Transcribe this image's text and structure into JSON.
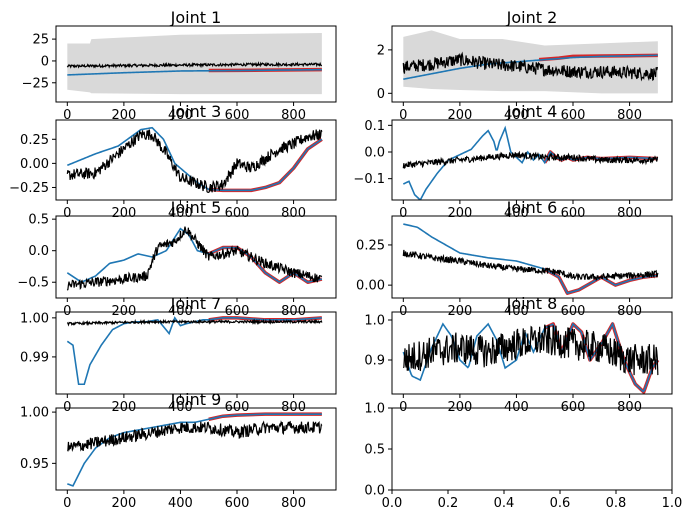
{
  "colors": {
    "prediction": "#1f77b4",
    "observed": "#000000",
    "band": "#d9d9d9",
    "highlight": "#d62728"
  },
  "chart_data": [
    {
      "type": "line",
      "title": "Joint 1",
      "xlim": [
        -40,
        950
      ],
      "ylim": [
        -47,
        40
      ],
      "xticks": [
        0,
        200,
        400,
        600,
        800
      ],
      "yticks": [
        {
          "v": 25,
          "label": "25"
        },
        {
          "v": 0,
          "label": "0"
        },
        {
          "v": -25,
          "label": "−25"
        }
      ],
      "band": {
        "x": [
          0,
          80,
          85,
          400,
          900
        ],
        "lower": [
          -33,
          -36,
          -37,
          -38,
          -38
        ],
        "upper": [
          20,
          20,
          25,
          30,
          32
        ]
      },
      "prediction": {
        "x": [
          0,
          200,
          400,
          600,
          900
        ],
        "y": [
          -16,
          -13.5,
          -11.5,
          -11,
          -10
        ]
      },
      "highlight": {
        "x": [
          500,
          600,
          700,
          800,
          900
        ],
        "y": [
          -11,
          -10.8,
          -10.5,
          -10.2,
          -10
        ]
      },
      "observed": {
        "base_x": [
          0,
          150,
          300,
          500,
          700,
          900
        ],
        "base_y": [
          -6,
          -5.5,
          -5,
          -4.5,
          -4,
          -4
        ],
        "noise": 1.5
      }
    },
    {
      "type": "line",
      "title": "Joint 2",
      "xlim": [
        -40,
        950
      ],
      "ylim": [
        -0.4,
        3.1
      ],
      "xticks": [
        0,
        200,
        400,
        600,
        800
      ],
      "yticks": [
        {
          "v": 2,
          "label": "2"
        },
        {
          "v": 0,
          "label": "0"
        }
      ],
      "band": {
        "x": [
          0,
          100,
          200,
          350,
          500,
          700,
          900
        ],
        "lower": [
          0.3,
          0.2,
          0.15,
          0.1,
          0.1,
          0.0,
          0.0
        ],
        "upper": [
          2.6,
          2.9,
          2.5,
          2.5,
          2.2,
          2.3,
          2.4
        ]
      },
      "prediction": {
        "x": [
          0,
          100,
          200,
          300,
          400,
          500,
          600,
          700,
          900
        ],
        "y": [
          0.65,
          0.9,
          1.15,
          1.35,
          1.45,
          1.55,
          1.65,
          1.7,
          1.75
        ]
      },
      "highlight": {
        "x": [
          480,
          550,
          600,
          700,
          800,
          900
        ],
        "y": [
          1.55,
          1.62,
          1.7,
          1.72,
          1.73,
          1.75
        ]
      },
      "observed": {
        "base_x": [
          0,
          100,
          200,
          300,
          400,
          500,
          600,
          700,
          800,
          900
        ],
        "base_y": [
          1.2,
          1.35,
          1.55,
          1.35,
          1.25,
          1.1,
          1.0,
          1.0,
          0.95,
          0.9
        ],
        "noise": 0.3
      }
    },
    {
      "type": "line",
      "title": "Joint 3",
      "xlim": [
        -40,
        950
      ],
      "ylim": [
        -0.38,
        0.45
      ],
      "xticks": [
        0,
        200,
        400,
        600,
        800
      ],
      "yticks": [
        {
          "v": 0.25,
          "label": "0.25"
        },
        {
          "v": 0,
          "label": "0.00"
        },
        {
          "v": -0.25,
          "label": "−0.25"
        }
      ],
      "band": {
        "x": [
          0,
          900
        ],
        "lower": [
          0,
          0
        ],
        "upper": [
          0,
          0
        ]
      },
      "prediction": {
        "x": [
          0,
          100,
          180,
          260,
          300,
          340,
          380,
          420,
          460,
          500,
          550,
          650,
          700,
          750,
          800,
          850,
          900
        ],
        "y": [
          -0.02,
          0.1,
          0.18,
          0.35,
          0.37,
          0.25,
          0.0,
          -0.1,
          -0.2,
          -0.27,
          -0.28,
          -0.28,
          -0.25,
          -0.2,
          -0.05,
          0.15,
          0.25
        ]
      },
      "highlight": {
        "x": [
          500,
          550,
          650,
          700,
          750,
          800,
          850,
          900
        ],
        "y": [
          -0.27,
          -0.28,
          -0.28,
          -0.25,
          -0.2,
          -0.05,
          0.15,
          0.25
        ]
      },
      "observed": {
        "base_x": [
          0,
          100,
          200,
          260,
          300,
          350,
          400,
          450,
          500,
          550,
          600,
          650,
          700,
          750,
          800,
          850,
          900
        ],
        "base_y": [
          -0.12,
          -0.1,
          0.15,
          0.3,
          0.3,
          0.1,
          -0.15,
          -0.2,
          -0.25,
          -0.22,
          0.0,
          -0.05,
          0.05,
          0.15,
          0.2,
          0.28,
          0.3
        ],
        "noise": 0.06
      }
    },
    {
      "type": "line",
      "title": "Joint 4",
      "xlim": [
        -40,
        950
      ],
      "ylim": [
        -0.18,
        0.12
      ],
      "xticks": [
        0,
        200,
        400,
        600,
        800
      ],
      "yticks": [
        {
          "v": 0.1,
          "label": "0.1"
        },
        {
          "v": 0,
          "label": "0.0"
        },
        {
          "v": -0.1,
          "label": "−0.1"
        }
      ],
      "band": {
        "x": [
          0,
          900
        ],
        "lower": [
          0,
          0
        ],
        "upper": [
          0,
          0
        ]
      },
      "prediction": {
        "x": [
          0,
          20,
          40,
          60,
          80,
          120,
          160,
          200,
          240,
          280,
          300,
          320,
          330,
          340,
          360,
          380,
          400,
          420,
          440,
          460,
          480,
          500,
          520,
          540,
          560,
          580,
          600,
          650,
          700,
          800,
          900
        ],
        "y": [
          -0.12,
          -0.11,
          -0.16,
          -0.18,
          -0.14,
          -0.08,
          -0.03,
          -0.01,
          0.01,
          0.06,
          0.08,
          0.04,
          0.0,
          0.04,
          0.09,
          0.0,
          -0.02,
          -0.04,
          0.0,
          -0.03,
          -0.01,
          -0.04,
          0.0,
          -0.02,
          -0.03,
          -0.02,
          -0.03,
          -0.02,
          -0.025,
          -0.02,
          -0.025
        ]
      },
      "highlight": {
        "x": [
          500,
          520,
          540,
          560,
          580,
          600,
          650,
          700,
          800,
          900
        ],
        "y": [
          -0.04,
          0.0,
          -0.02,
          -0.03,
          -0.02,
          -0.03,
          -0.02,
          -0.025,
          -0.02,
          -0.025
        ]
      },
      "observed": {
        "base_x": [
          0,
          100,
          200,
          300,
          400,
          500,
          600,
          700,
          800,
          900
        ],
        "base_y": [
          -0.05,
          -0.04,
          -0.03,
          -0.02,
          -0.01,
          -0.02,
          -0.02,
          -0.03,
          -0.03,
          -0.03
        ],
        "noise": 0.012
      }
    },
    {
      "type": "line",
      "title": "Joint 5",
      "xlim": [
        -40,
        950
      ],
      "ylim": [
        -0.75,
        0.55
      ],
      "xticks": [
        0,
        200,
        400,
        600,
        800
      ],
      "yticks": [
        {
          "v": 0.5,
          "label": "0.5"
        },
        {
          "v": 0,
          "label": "0.0"
        },
        {
          "v": -0.5,
          "label": "−0.5"
        }
      ],
      "band": {
        "x": [
          0,
          900
        ],
        "lower": [
          0,
          0
        ],
        "upper": [
          0,
          0
        ]
      },
      "prediction": {
        "x": [
          0,
          50,
          100,
          150,
          200,
          250,
          300,
          350,
          400,
          430,
          460,
          500,
          550,
          600,
          650,
          700,
          750,
          800,
          850,
          900
        ],
        "y": [
          -0.35,
          -0.5,
          -0.4,
          -0.2,
          -0.15,
          -0.05,
          -0.1,
          0.0,
          0.35,
          0.25,
          0.0,
          -0.05,
          0.05,
          0.05,
          -0.1,
          -0.35,
          -0.5,
          -0.35,
          -0.5,
          -0.45
        ]
      },
      "highlight": {
        "x": [
          500,
          550,
          600,
          650,
          700,
          750,
          800,
          850,
          900
        ],
        "y": [
          -0.05,
          0.05,
          0.05,
          -0.1,
          -0.35,
          -0.5,
          -0.35,
          -0.5,
          -0.45
        ]
      },
      "observed": {
        "base_x": [
          0,
          100,
          200,
          280,
          320,
          380,
          420,
          500,
          600,
          700,
          800,
          900
        ],
        "base_y": [
          -0.55,
          -0.5,
          -0.45,
          -0.4,
          0.05,
          0.15,
          0.35,
          -0.1,
          0.0,
          -0.2,
          -0.35,
          -0.45
        ],
        "noise": 0.08
      }
    },
    {
      "type": "line",
      "title": "Joint 6",
      "xlim": [
        -40,
        950
      ],
      "ylim": [
        -0.08,
        0.43
      ],
      "xticks": [
        0,
        200,
        400,
        600,
        800
      ],
      "yticks": [
        {
          "v": 0.25,
          "label": "0.25"
        },
        {
          "v": 0,
          "label": "0.00"
        }
      ],
      "band": {
        "x": [
          0,
          900
        ],
        "lower": [
          0,
          0
        ],
        "upper": [
          0,
          0
        ]
      },
      "prediction": {
        "x": [
          0,
          50,
          100,
          150,
          200,
          300,
          400,
          500,
          550,
          580,
          620,
          700,
          750,
          800,
          850,
          900
        ],
        "y": [
          0.38,
          0.36,
          0.3,
          0.25,
          0.2,
          0.17,
          0.15,
          0.1,
          0.05,
          -0.05,
          -0.03,
          0.05,
          0.0,
          0.03,
          0.05,
          0.06
        ]
      },
      "highlight": {
        "x": [
          500,
          550,
          580,
          620,
          700,
          750,
          800,
          850,
          900
        ],
        "y": [
          0.1,
          0.05,
          -0.05,
          -0.03,
          0.05,
          0.0,
          0.03,
          0.05,
          0.06
        ]
      },
      "observed": {
        "base_x": [
          0,
          100,
          200,
          300,
          400,
          500,
          550,
          600,
          700,
          800,
          900
        ],
        "base_y": [
          0.2,
          0.17,
          0.15,
          0.12,
          0.1,
          0.09,
          0.08,
          0.05,
          0.05,
          0.06,
          0.07
        ],
        "noise": 0.02
      }
    },
    {
      "type": "line",
      "title": "Joint 7",
      "xlim": [
        -40,
        950
      ],
      "ylim": [
        0.9805,
        1.0015
      ],
      "xticks": [
        0,
        200,
        400,
        600,
        800
      ],
      "yticks": [
        {
          "v": 1.0,
          "label": "1.00"
        },
        {
          "v": 0.99,
          "label": "0.99"
        }
      ],
      "band": {
        "x": [
          0,
          900
        ],
        "lower": [
          0,
          0
        ],
        "upper": [
          0,
          0
        ]
      },
      "prediction": {
        "x": [
          0,
          20,
          40,
          60,
          80,
          120,
          160,
          200,
          240,
          280,
          320,
          360,
          380,
          400,
          420,
          450,
          480,
          500,
          550,
          600,
          700,
          800,
          900
        ],
        "y": [
          0.994,
          0.993,
          0.983,
          0.983,
          0.988,
          0.993,
          0.997,
          0.9985,
          0.999,
          0.999,
          0.9995,
          0.996,
          1.0,
          0.998,
          0.9985,
          0.999,
          0.9995,
          0.9995,
          1.0,
          1.0,
          0.9995,
          0.9995,
          1.0
        ]
      },
      "highlight": {
        "x": [
          500,
          550,
          600,
          700,
          800,
          900
        ],
        "y": [
          0.9995,
          1.0,
          1.0,
          0.9995,
          0.9995,
          1.0
        ]
      },
      "observed": {
        "base_x": [
          0,
          300,
          600,
          900
        ],
        "base_y": [
          0.9985,
          0.999,
          0.999,
          0.999
        ],
        "noise": 0.0003
      }
    },
    {
      "type": "line",
      "title": "Joint 8",
      "xlim": [
        -40,
        950
      ],
      "ylim": [
        0.815,
        1.02
      ],
      "xticks": [
        0,
        200,
        400,
        600,
        800
      ],
      "yticks": [
        {
          "v": 1.0,
          "label": "1.0"
        },
        {
          "v": 0.9,
          "label": "0.9"
        }
      ],
      "band": {
        "x": [
          0,
          900
        ],
        "lower": [
          0,
          0
        ],
        "upper": [
          0,
          0
        ]
      },
      "prediction": {
        "x": [
          0,
          30,
          60,
          100,
          140,
          170,
          200,
          230,
          260,
          300,
          330,
          360,
          400,
          430,
          460,
          500,
          530,
          560,
          600,
          630,
          660,
          700,
          740,
          780,
          820,
          850,
          880,
          900
        ],
        "y": [
          0.92,
          0.86,
          0.85,
          0.93,
          0.99,
          0.96,
          0.9,
          0.88,
          0.96,
          0.99,
          0.95,
          0.88,
          0.9,
          0.97,
          0.92,
          0.98,
          0.99,
          0.92,
          0.99,
          0.97,
          0.9,
          0.94,
          0.99,
          0.9,
          0.84,
          0.82,
          0.88,
          0.9
        ]
      },
      "highlight": {
        "x": [
          500,
          530,
          560,
          600,
          630,
          660,
          700,
          740,
          780,
          820,
          850,
          880,
          900
        ],
        "y": [
          0.98,
          0.99,
          0.92,
          0.99,
          0.97,
          0.9,
          0.94,
          0.99,
          0.9,
          0.84,
          0.82,
          0.88,
          0.9
        ]
      },
      "observed": {
        "base_x": [
          0,
          100,
          200,
          300,
          400,
          500,
          600,
          700,
          800,
          900
        ],
        "base_y": [
          0.9,
          0.92,
          0.93,
          0.92,
          0.94,
          0.95,
          0.94,
          0.93,
          0.9,
          0.9
        ],
        "noise": 0.04
      }
    },
    {
      "type": "line",
      "title": "Joint 9",
      "xlim": [
        -40,
        950
      ],
      "ylim": [
        0.924,
        1.004
      ],
      "xticks": [
        0,
        200,
        400,
        600,
        800
      ],
      "xtick_labels": [
        "0",
        "200",
        "400",
        "600",
        "800"
      ],
      "yticks": [
        {
          "v": 1.0,
          "label": "1.00"
        },
        {
          "v": 0.95,
          "label": "0.95"
        }
      ],
      "band": {
        "x": [
          0,
          900
        ],
        "lower": [
          0,
          0
        ],
        "upper": [
          0,
          0
        ]
      },
      "prediction": {
        "x": [
          0,
          20,
          60,
          100,
          150,
          200,
          300,
          400,
          450,
          500,
          550,
          600,
          700,
          800,
          900
        ],
        "y": [
          0.93,
          0.928,
          0.95,
          0.965,
          0.975,
          0.98,
          0.985,
          0.99,
          0.99,
          0.993,
          0.996,
          0.997,
          0.998,
          0.998,
          0.998
        ]
      },
      "highlight": {
        "x": [
          500,
          550,
          600,
          700,
          800,
          900
        ],
        "y": [
          0.993,
          0.996,
          0.997,
          0.998,
          0.998,
          0.998
        ]
      },
      "observed": {
        "base_x": [
          0,
          100,
          200,
          300,
          400,
          500,
          600,
          700,
          800,
          900
        ],
        "base_y": [
          0.965,
          0.97,
          0.975,
          0.98,
          0.985,
          0.985,
          0.98,
          0.985,
          0.985,
          0.985
        ],
        "noise": 0.006
      }
    },
    {
      "type": "line",
      "title": "",
      "xlim": [
        0,
        1
      ],
      "ylim": [
        0,
        1
      ],
      "xticks": [
        0,
        0.2,
        0.4,
        0.6,
        0.8,
        1.0
      ],
      "xtick_labels": [
        "0.0",
        "0.2",
        "0.4",
        "0.6",
        "0.8",
        "1.0"
      ],
      "yticks": [
        {
          "v": 1.0,
          "label": "1.0"
        },
        {
          "v": 0.5,
          "label": "0.5"
        },
        {
          "v": 0.0,
          "label": "0.0"
        }
      ],
      "empty": true
    }
  ]
}
